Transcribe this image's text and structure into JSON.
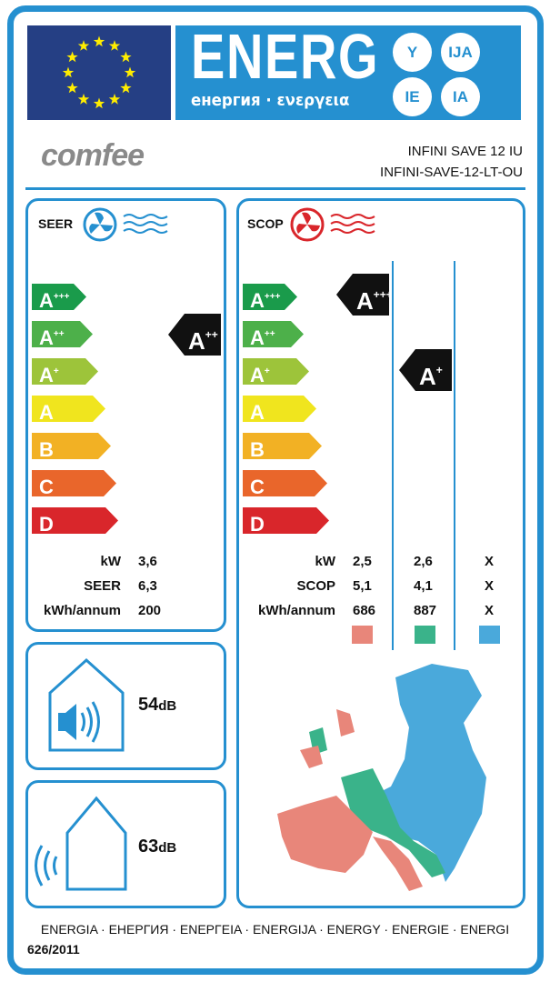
{
  "header": {
    "title": "ENERG",
    "subtitle": "енергия · ενεργεια",
    "suffixes": [
      "Y",
      "IJA",
      "IE",
      "IA"
    ]
  },
  "brand": {
    "logo_text": "comfee"
  },
  "model": {
    "indoor": "INFINI SAVE 12 IU",
    "outdoor": "INFINI-SAVE-12-LT-OU"
  },
  "colors": {
    "frame": "#2590d0",
    "flag": "#253f84",
    "star": "#ffed00",
    "classes": [
      "#1a9b4b",
      "#4db04a",
      "#9dc43a",
      "#f0e51e",
      "#f2b124",
      "#e9662b",
      "#d9262b"
    ],
    "zone_warmer": "#e8867a",
    "zone_average": "#3ab38a",
    "zone_colder": "#4aa9db"
  },
  "classes": [
    {
      "base": "A",
      "sup": "+++"
    },
    {
      "base": "A",
      "sup": "++"
    },
    {
      "base": "A",
      "sup": "+"
    },
    {
      "base": "A",
      "sup": ""
    },
    {
      "base": "B",
      "sup": ""
    },
    {
      "base": "C",
      "sup": ""
    },
    {
      "base": "D",
      "sup": ""
    }
  ],
  "seer": {
    "title": "SEER",
    "icon": "fan-cooling-icon",
    "rating": {
      "base": "A",
      "sup": "++"
    },
    "rows": [
      {
        "label": "kW",
        "value": "3,6"
      },
      {
        "label": "SEER",
        "value": "6,3"
      },
      {
        "label": "kWh/annum",
        "value": "200"
      }
    ]
  },
  "scop": {
    "title": "SCOP",
    "icon": "fan-heating-icon",
    "ratings": [
      {
        "base": "A",
        "sup": "+++"
      },
      {
        "base": "A",
        "sup": "+"
      }
    ],
    "rows": [
      {
        "label": "kW",
        "values": [
          "2,5",
          "2,6",
          "X"
        ]
      },
      {
        "label": "SCOP",
        "values": [
          "5,1",
          "4,1",
          "X"
        ]
      },
      {
        "label": "kWh/annum",
        "values": [
          "686",
          "887",
          "X"
        ]
      }
    ]
  },
  "noise": {
    "indoor": {
      "value": "54",
      "unit": "dB"
    },
    "outdoor": {
      "value": "63",
      "unit": "dB"
    }
  },
  "footer": {
    "languages": "ENERGIA · ЕНЕРГИЯ · ΕΝΕΡΓΕΙΑ · ENERGIJA · ENERGY · ENERGIE · ENERGI",
    "regulation": "626/2011"
  }
}
